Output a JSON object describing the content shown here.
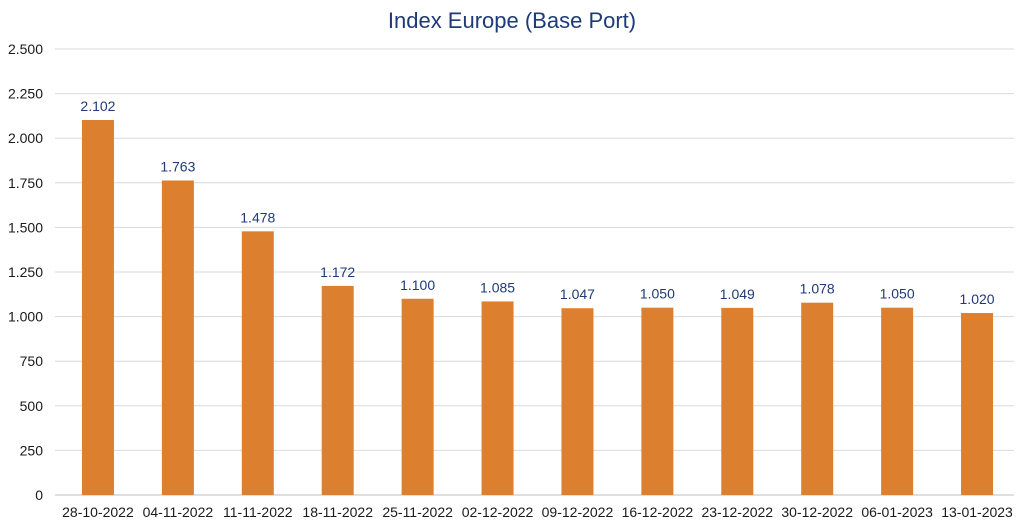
{
  "chart_data": {
    "type": "bar",
    "title": "Index Europe (Base Port)",
    "xlabel": "",
    "ylabel": "",
    "categories": [
      "28-10-2022",
      "04-11-2022",
      "11-11-2022",
      "18-11-2022",
      "25-11-2022",
      "02-12-2022",
      "09-12-2022",
      "16-12-2022",
      "23-12-2022",
      "30-12-2022",
      "06-01-2023",
      "13-01-2023"
    ],
    "values": [
      2102,
      1763,
      1478,
      1172,
      1100,
      1085,
      1047,
      1050,
      1049,
      1078,
      1050,
      1020
    ],
    "value_labels": [
      "2.102",
      "1.763",
      "1.478",
      "1.172",
      "1.100",
      "1.085",
      "1.047",
      "1.050",
      "1.049",
      "1.078",
      "1.050",
      "1.020"
    ],
    "ylim": [
      0,
      2500
    ],
    "yticks": [
      0,
      250,
      500,
      750,
      1000,
      1250,
      1500,
      1750,
      2000,
      2250,
      2500
    ],
    "ytick_labels": [
      "0",
      "250",
      "500",
      "750",
      "1.000",
      "1.250",
      "1.500",
      "1.750",
      "2.000",
      "2.250",
      "2.500"
    ],
    "grid": true,
    "legend": "none",
    "colors": {
      "bar": "#dc7f2e",
      "title": "#1f3a78",
      "data_label": "#1f3a78"
    }
  }
}
